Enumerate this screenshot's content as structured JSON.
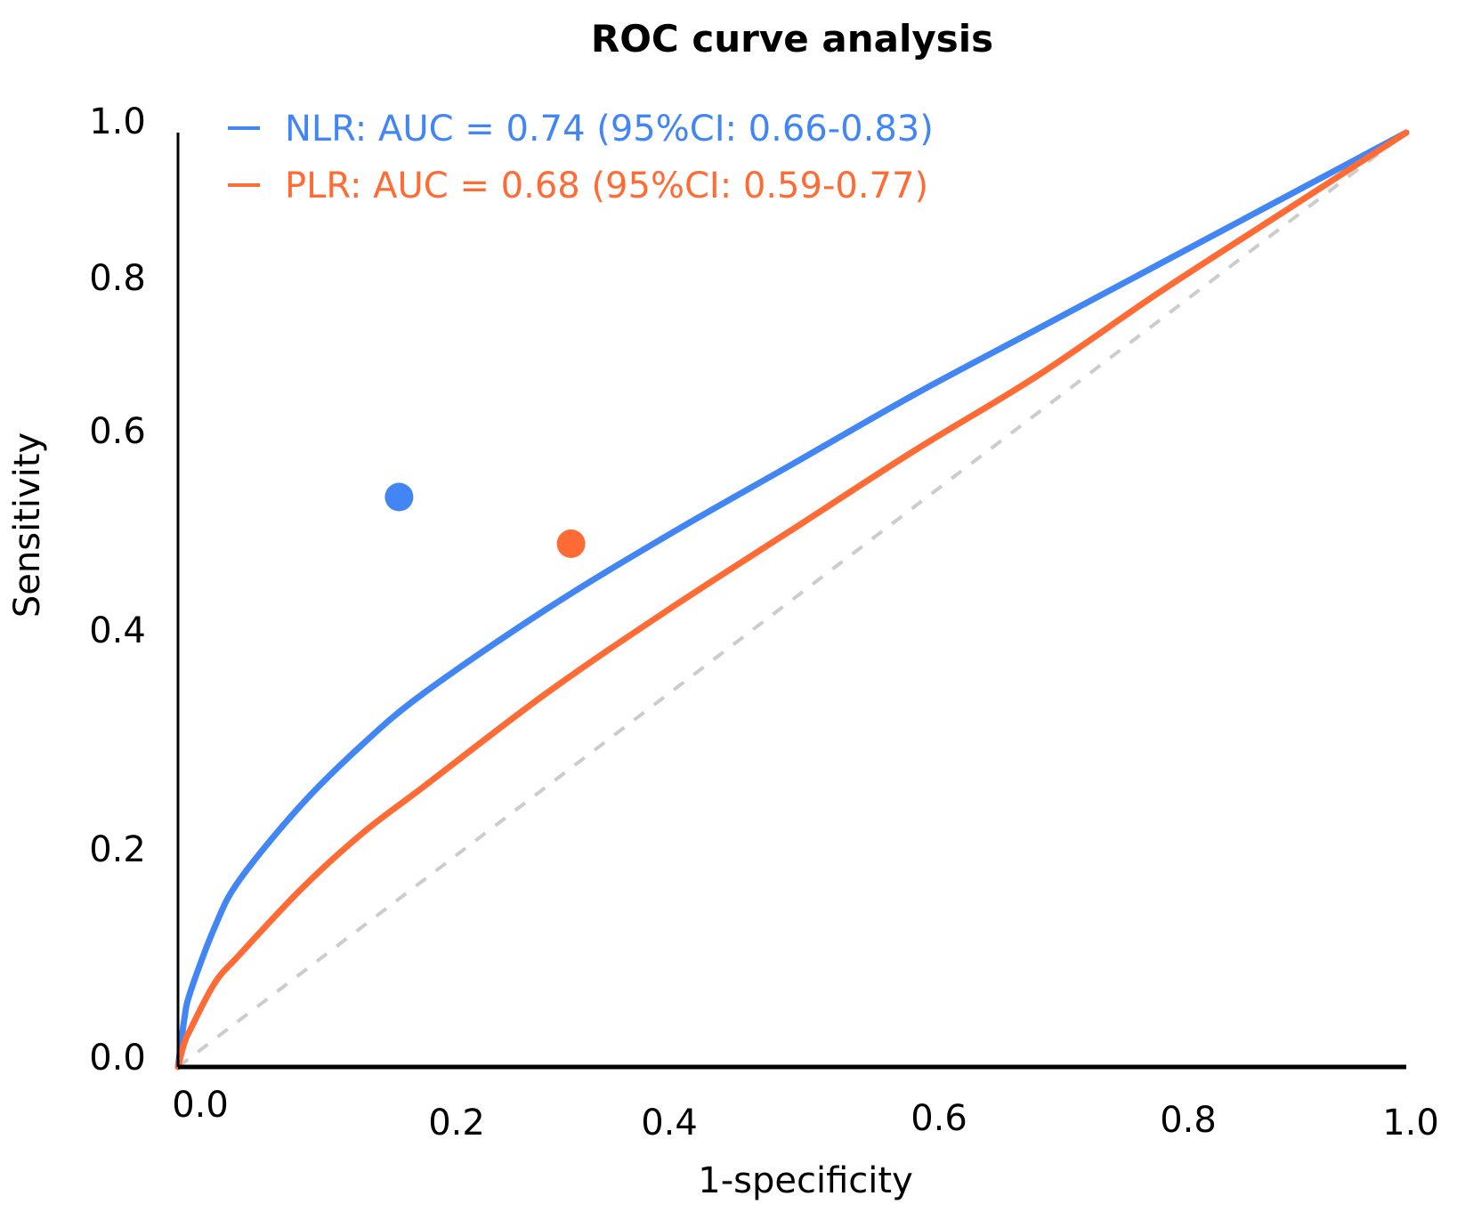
{
  "chart_data": {
    "type": "line",
    "title": "ROC curve analysis",
    "xlabel": "1-specificity",
    "ylabel": "Sensitivity",
    "xlim": [
      0,
      1
    ],
    "ylim": [
      0,
      1
    ],
    "grid": false,
    "legend_position": "top-left",
    "x_ticks": [
      "0.0",
      "0.2",
      "0.4",
      "0.6",
      "0.8",
      "1.0"
    ],
    "y_ticks": [
      "0.0",
      "0.2",
      "0.4",
      "0.6",
      "0.8",
      "1.0"
    ],
    "series": [
      {
        "name": "NLR",
        "legend": "NLR: AUC = 0.74 (95%CI: 0.66-0.83)",
        "auc": 0.74,
        "ci": [
          0.66,
          0.83
        ],
        "color": "#4285F4",
        "x": [
          0,
          0.005,
          0.01,
          0.03,
          0.05,
          0.1,
          0.15,
          0.2,
          0.3,
          0.4,
          0.5,
          0.6,
          0.7,
          0.8,
          0.9,
          1.0
        ],
        "y": [
          0,
          0.05,
          0.08,
          0.15,
          0.2,
          0.28,
          0.345,
          0.4,
          0.49,
          0.57,
          0.645,
          0.72,
          0.79,
          0.86,
          0.93,
          1.0
        ],
        "cutoff_point": {
          "x": 0.18,
          "y": 0.61
        }
      },
      {
        "name": "PLR",
        "legend": "PLR: AUC = 0.68 (95%CI: 0.59-0.77)",
        "auc": 0.68,
        "ci": [
          0.59,
          0.77
        ],
        "color": "#FF6B35",
        "x": [
          0,
          0.005,
          0.01,
          0.03,
          0.05,
          0.1,
          0.15,
          0.2,
          0.3,
          0.4,
          0.5,
          0.6,
          0.7,
          0.8,
          0.9,
          1.0
        ],
        "y": [
          0,
          0.025,
          0.04,
          0.09,
          0.12,
          0.19,
          0.25,
          0.3,
          0.4,
          0.49,
          0.575,
          0.66,
          0.74,
          0.83,
          0.915,
          1.0
        ],
        "cutoff_point": {
          "x": 0.32,
          "y": 0.56
        }
      }
    ],
    "reference_line": {
      "x": [
        0,
        1
      ],
      "y": [
        0,
        1
      ],
      "style": "dashed",
      "color": "#CCCCCC"
    }
  }
}
